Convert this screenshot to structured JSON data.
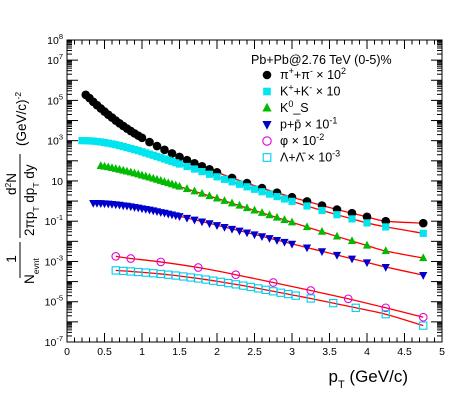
{
  "chart_data": {
    "type": "scatter",
    "title": "Pb+Pb@2.76 TeV (0-5)%",
    "xlabel": "p_T (GeV/c)",
    "ylabel": "1/N_evnt d²N/(2πp_T dp_T dy) (GeV/c)^-2",
    "xlim": [
      0,
      5
    ],
    "ylim": [
      1e-07,
      100000000.0
    ],
    "yscale": "log",
    "x_ticks": [
      "0",
      "0.5",
      "1",
      "1.5",
      "2",
      "2.5",
      "3",
      "3.5",
      "4",
      "4.5",
      "5"
    ],
    "y_ticks": [
      "10^-7",
      "10^-5",
      "10^-3",
      "10^-1",
      "10",
      "10^3",
      "10^5",
      "10^7",
      "10^8"
    ],
    "legend_position": "top-right",
    "series": [
      {
        "name": "π⁺+π⁻ × 10²",
        "marker": "circle-filled",
        "color": "#000000",
        "x": [
          0.25,
          0.3,
          0.35,
          0.4,
          0.45,
          0.5,
          0.55,
          0.6,
          0.65,
          0.7,
          0.75,
          0.8,
          0.85,
          0.9,
          0.95,
          1.0,
          1.1,
          1.2,
          1.3,
          1.4,
          1.5,
          1.6,
          1.7,
          1.8,
          1.9,
          2.0,
          2.2,
          2.4,
          2.6,
          2.8,
          3.0,
          3.2,
          3.4,
          3.6,
          3.8,
          4.0,
          4.25,
          4.75
        ],
        "y": [
          190000,
          130000,
          85000,
          58000,
          40000,
          28000,
          19500,
          14000,
          10000,
          7300,
          5400,
          4000,
          3000,
          2300,
          1780,
          1380,
          850,
          540,
          350,
          232,
          156,
          107,
          75,
          53,
          38,
          27,
          14.2,
          7.8,
          4.4,
          2.6,
          1.55,
          0.96,
          0.6,
          0.38,
          0.25,
          0.165,
          0.1,
          0.08
        ]
      },
      {
        "name": "K⁺+K⁻ × 10",
        "marker": "square-filled",
        "color": "#00e5ee",
        "x": [
          0.2,
          0.25,
          0.3,
          0.35,
          0.4,
          0.45,
          0.5,
          0.55,
          0.6,
          0.65,
          0.7,
          0.75,
          0.8,
          0.85,
          0.9,
          0.95,
          1.0,
          1.05,
          1.1,
          1.15,
          1.2,
          1.25,
          1.3,
          1.35,
          1.4,
          1.45,
          1.5,
          1.6,
          1.7,
          1.8,
          1.9,
          2.0,
          2.1,
          2.2,
          2.3,
          2.4,
          2.5,
          2.6,
          2.7,
          2.8,
          2.9,
          3.0,
          3.2,
          3.4,
          3.6,
          3.8,
          4.0,
          4.25,
          4.75
        ],
        "y": [
          1000,
          1000,
          980,
          950,
          910,
          860,
          810,
          750,
          690,
          630,
          570,
          510,
          455,
          405,
          360,
          320,
          280,
          245,
          215,
          188,
          163,
          142,
          123,
          107,
          93,
          80,
          69,
          52,
          39,
          29,
          21.5,
          16,
          12,
          9,
          6.8,
          5.1,
          3.85,
          2.9,
          2.2,
          1.66,
          1.27,
          0.97,
          0.57,
          0.34,
          0.21,
          0.13,
          0.082,
          0.052,
          0.025
        ]
      },
      {
        "name": "K⁰_S",
        "marker": "triangle-up-filled",
        "color": "#00bb00",
        "x": [
          0.45,
          0.5,
          0.55,
          0.6,
          0.65,
          0.7,
          0.75,
          0.8,
          0.85,
          0.9,
          0.95,
          1.0,
          1.05,
          1.1,
          1.15,
          1.2,
          1.25,
          1.3,
          1.35,
          1.4,
          1.45,
          1.5,
          1.6,
          1.7,
          1.8,
          1.9,
          2.0,
          2.1,
          2.2,
          2.3,
          2.4,
          2.5,
          2.6,
          2.7,
          2.8,
          2.9,
          3.0,
          3.2,
          3.4,
          3.6,
          3.8,
          4.0,
          4.25,
          4.75
        ],
        "y": [
          56,
          52,
          48,
          44,
          40,
          36.5,
          33,
          29.7,
          26.7,
          23.9,
          21.3,
          18.9,
          16.8,
          14.9,
          13.1,
          11.6,
          10.2,
          8.95,
          7.85,
          6.88,
          6.02,
          5.27,
          4.02,
          3.07,
          2.34,
          1.78,
          1.36,
          1.03,
          0.78,
          0.6,
          0.45,
          0.345,
          0.262,
          0.2,
          0.152,
          0.116,
          0.088,
          0.051,
          0.03,
          0.0175,
          0.0104,
          0.0062,
          0.0033,
          0.00148
        ]
      },
      {
        "name": "p+p̄ × 10⁻¹",
        "marker": "triangle-down-filled",
        "color": "#0000cc",
        "x": [
          0.35,
          0.4,
          0.45,
          0.5,
          0.55,
          0.6,
          0.65,
          0.7,
          0.75,
          0.8,
          0.85,
          0.9,
          0.95,
          1.0,
          1.05,
          1.1,
          1.15,
          1.2,
          1.25,
          1.3,
          1.35,
          1.4,
          1.45,
          1.5,
          1.6,
          1.7,
          1.8,
          1.9,
          2.0,
          2.1,
          2.2,
          2.3,
          2.4,
          2.5,
          2.6,
          2.7,
          2.8,
          2.9,
          3.0,
          3.2,
          3.4,
          3.6,
          3.8,
          4.0,
          4.25,
          4.75
        ],
        "y": [
          0.8,
          0.8,
          0.78,
          0.76,
          0.74,
          0.71,
          0.68,
          0.65,
          0.61,
          0.58,
          0.54,
          0.5,
          0.47,
          0.43,
          0.4,
          0.37,
          0.34,
          0.31,
          0.28,
          0.26,
          0.235,
          0.214,
          0.194,
          0.176,
          0.145,
          0.118,
          0.096,
          0.078,
          0.063,
          0.051,
          0.0415,
          0.0336,
          0.0272,
          0.022,
          0.0177,
          0.0143,
          0.0115,
          0.0093,
          0.0075,
          0.0049,
          0.0032,
          0.0021,
          0.00137,
          0.0009,
          0.00053,
          0.00021
        ]
      },
      {
        "name": "φ × 10⁻²",
        "marker": "circle-open",
        "color": "#e000e0",
        "x": [
          0.65,
          0.85,
          1.25,
          1.75,
          2.25,
          2.75,
          3.25,
          3.75,
          4.25,
          4.75
        ],
        "y": [
          0.0018,
          0.0014,
          0.00095,
          0.0005,
          0.00022,
          9e-05,
          3.6e-05,
          1.4e-05,
          5e-06,
          1.7e-06
        ]
      },
      {
        "name": "Λ+Λ̄ × 10⁻³",
        "marker": "square-open",
        "color": "#00ccee",
        "x": [
          0.65,
          0.75,
          0.85,
          0.95,
          1.05,
          1.15,
          1.25,
          1.35,
          1.45,
          1.55,
          1.65,
          1.75,
          1.85,
          1.95,
          2.05,
          2.15,
          2.25,
          2.35,
          2.45,
          2.55,
          2.65,
          2.75,
          2.85,
          2.95,
          3.05,
          3.25,
          3.55,
          3.85,
          4.25,
          4.75
        ],
        "y": [
          0.00036,
          0.00034,
          0.00032,
          0.0003,
          0.00028,
          0.00026,
          0.00024,
          0.00022,
          0.0002,
          0.00018,
          0.00016,
          0.000143,
          0.000126,
          0.000111,
          9.7e-05,
          8.4e-05,
          7.3e-05,
          6.3e-05,
          5.4e-05,
          4.6e-05,
          3.9e-05,
          3.3e-05,
          2.8e-05,
          2.4e-05,
          2e-05,
          1.45e-05,
          8.5e-06,
          5e-06,
          2.4e-06,
          6.5e-07
        ]
      }
    ],
    "fit_color": "#ff0000"
  }
}
